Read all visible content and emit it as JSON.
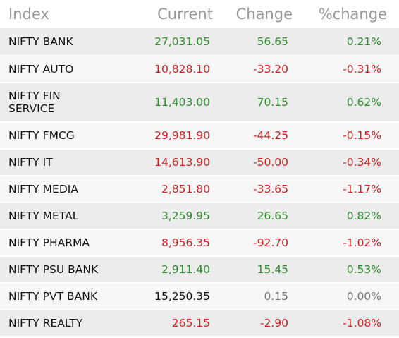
{
  "colors": {
    "up": "#2e8b2e",
    "down": "#cc2222",
    "neutral": "#777777",
    "header_text": "#999999",
    "row_odd": "#ececec",
    "row_even": "#f7f7f7"
  },
  "headers": {
    "index": "Index",
    "current": "Current",
    "change": "Change",
    "pct_change": "%change"
  },
  "rows": [
    {
      "index": "NIFTY BANK",
      "current": "27,031.05",
      "change": "56.65",
      "pct": "0.21%",
      "trend": "up"
    },
    {
      "index": "NIFTY AUTO",
      "current": "10,828.10",
      "change": "-33.20",
      "pct": "-0.31%",
      "trend": "down"
    },
    {
      "index": "NIFTY FIN SERVICE",
      "current": "11,403.00",
      "change": "70.15",
      "pct": "0.62%",
      "trend": "up"
    },
    {
      "index": "NIFTY FMCG",
      "current": "29,981.90",
      "change": "-44.25",
      "pct": "-0.15%",
      "trend": "down"
    },
    {
      "index": "NIFTY IT",
      "current": "14,613.90",
      "change": "-50.00",
      "pct": "-0.34%",
      "trend": "down"
    },
    {
      "index": "NIFTY MEDIA",
      "current": "2,851.80",
      "change": "-33.65",
      "pct": "-1.17%",
      "trend": "down"
    },
    {
      "index": "NIFTY METAL",
      "current": "3,259.95",
      "change": "26.65",
      "pct": "0.82%",
      "trend": "up"
    },
    {
      "index": "NIFTY PHARMA",
      "current": "8,956.35",
      "change": "-92.70",
      "pct": "-1.02%",
      "trend": "down"
    },
    {
      "index": "NIFTY PSU BANK",
      "current": "2,911.40",
      "change": "15.45",
      "pct": "0.53%",
      "trend": "up"
    },
    {
      "index": "NIFTY PVT BANK",
      "current": "15,250.35",
      "change": "0.15",
      "pct": "0.00%",
      "trend": "flat"
    },
    {
      "index": "NIFTY REALTY",
      "current": "265.15",
      "change": "-2.90",
      "pct": "-1.08%",
      "trend": "down"
    }
  ]
}
